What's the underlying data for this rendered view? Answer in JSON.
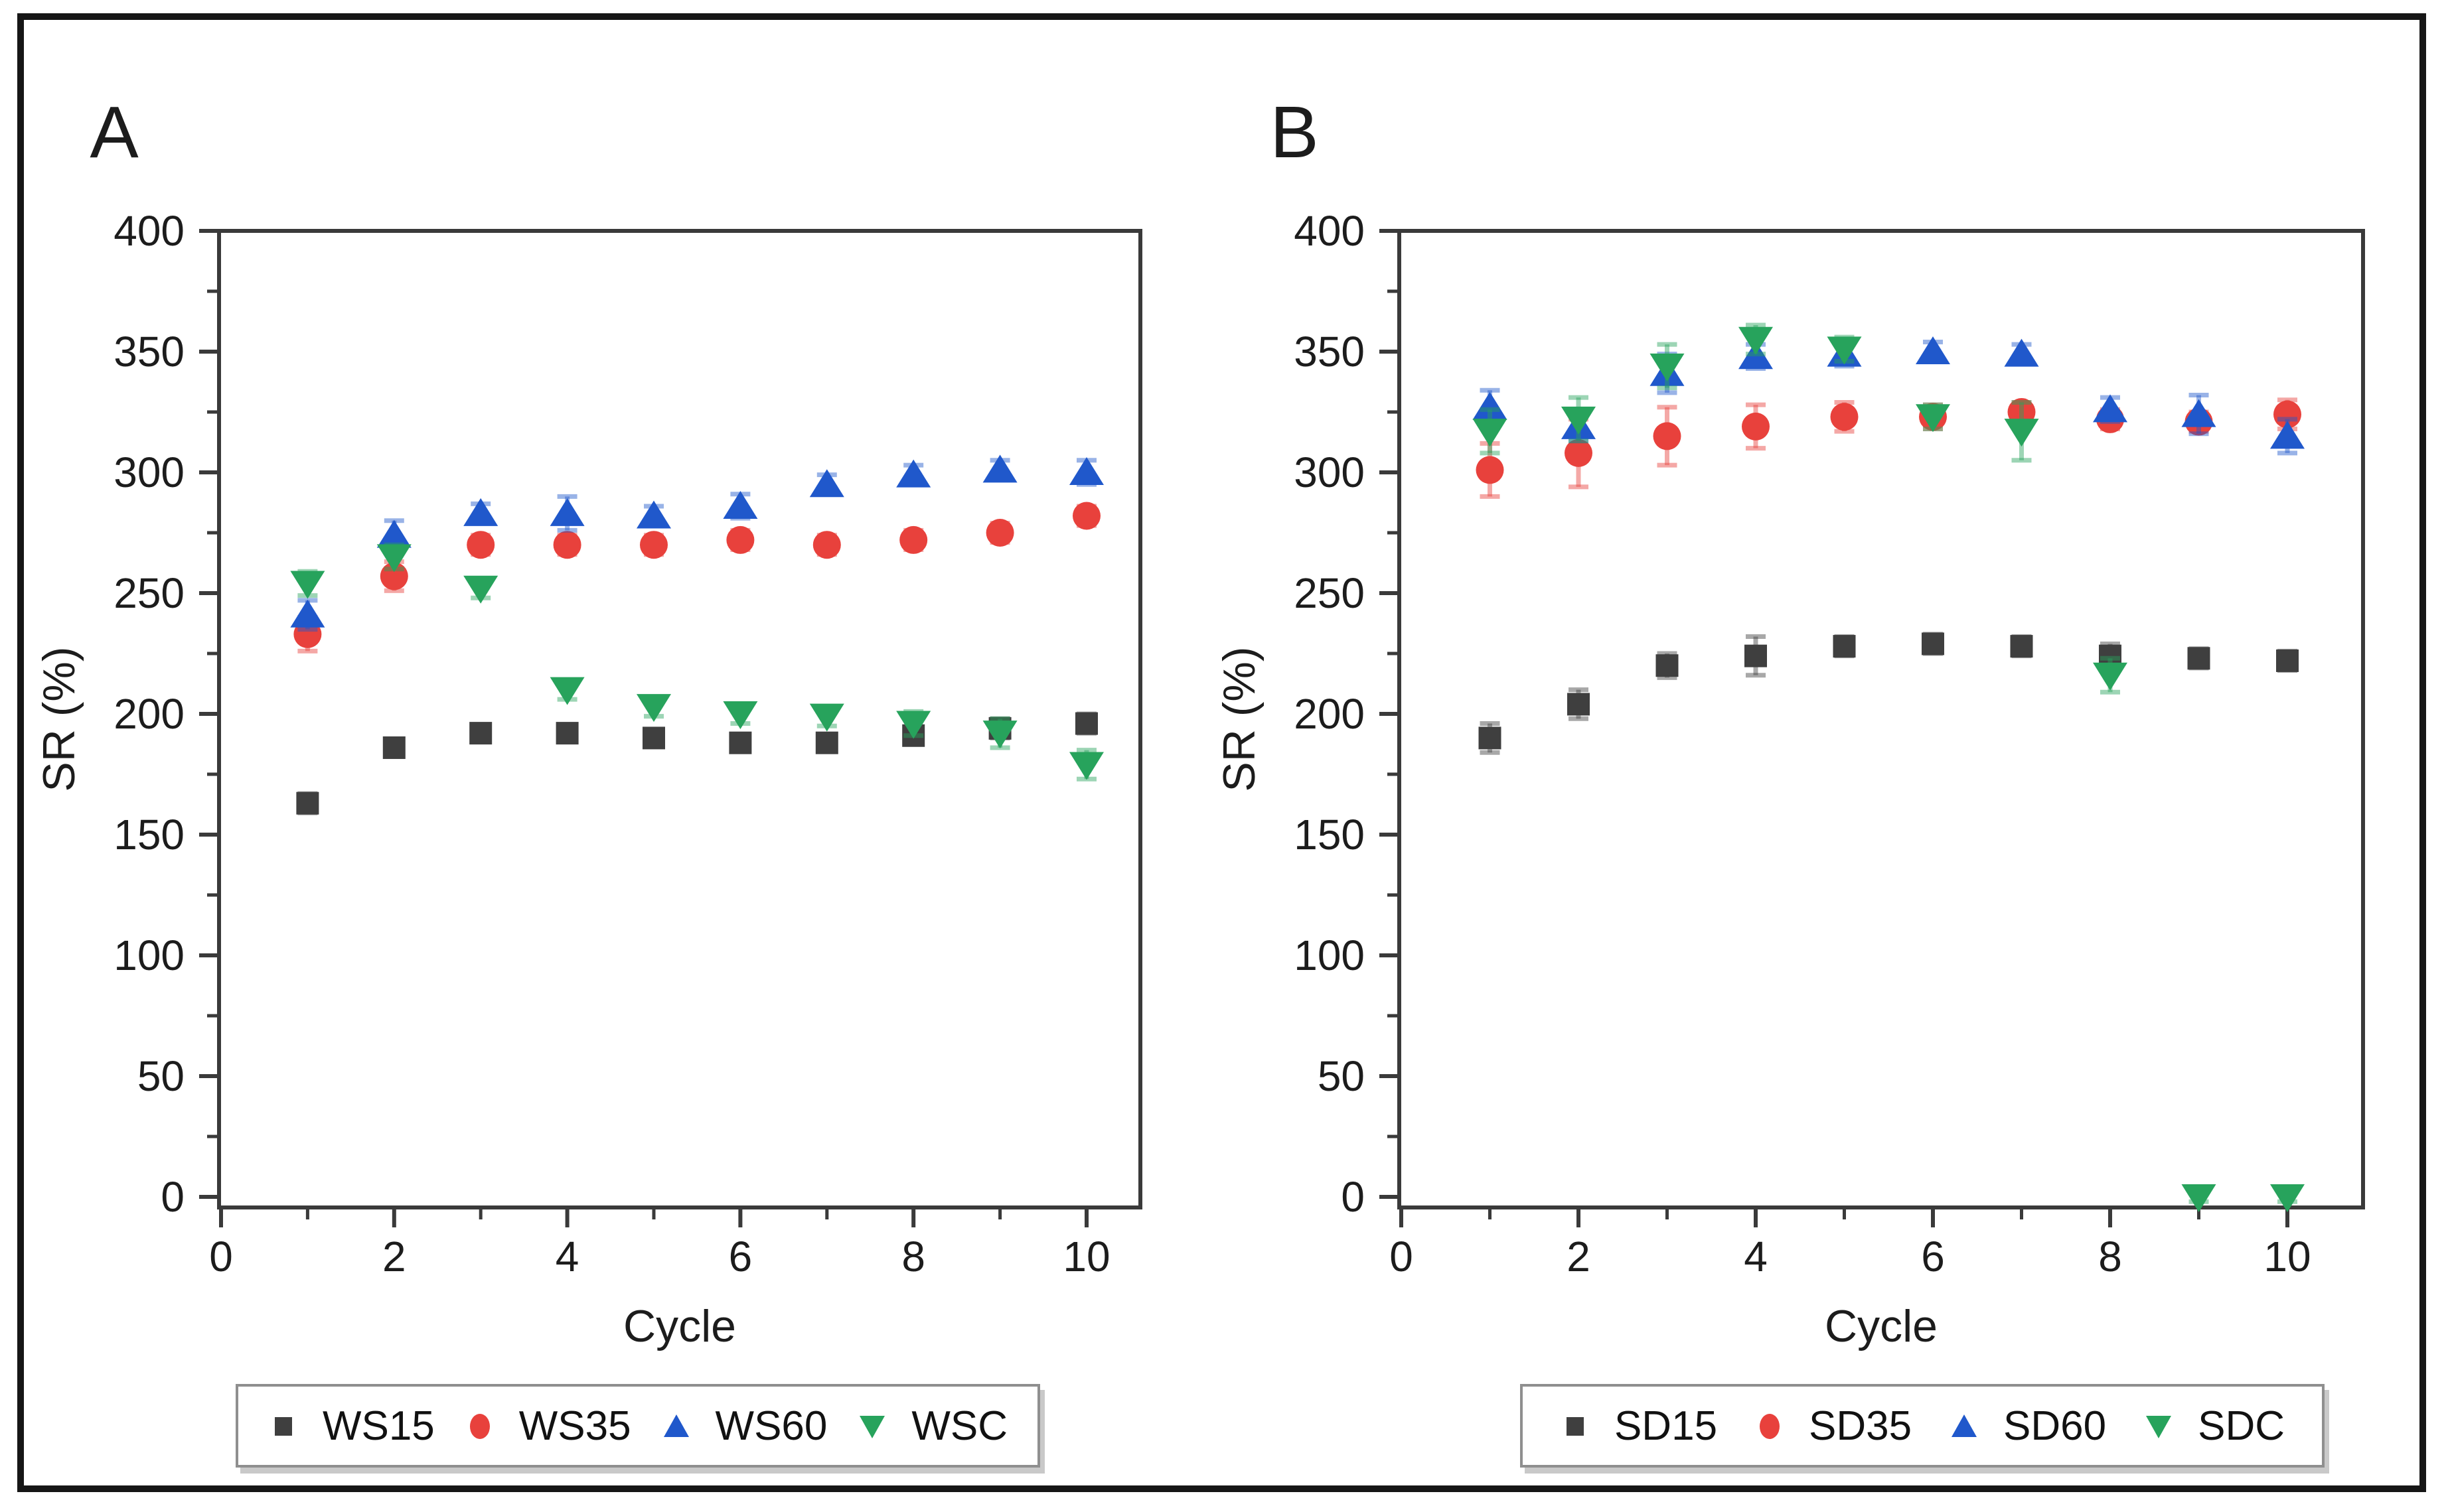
{
  "figure": {
    "background": "#ffffff",
    "border_color": "#161616",
    "axis_color": "#3a3a3a",
    "text_color": "#1c1c1c"
  },
  "chart_data": [
    {
      "panel_label": "A",
      "type": "scatter",
      "title": "",
      "xlabel": "Cycle",
      "ylabel": "SR (%)",
      "xlim": [
        0,
        10.6
      ],
      "ylim": [
        -4,
        400
      ],
      "grid": false,
      "legend_position": "bottom",
      "x_major_ticks": [
        0,
        2,
        4,
        6,
        8,
        10
      ],
      "x_minor_ticks": [
        1,
        3,
        5,
        7,
        9
      ],
      "y_major_ticks": [
        0,
        50,
        100,
        150,
        200,
        250,
        300,
        350,
        400
      ],
      "x": [
        1,
        2,
        3,
        4,
        5,
        6,
        7,
        8,
        9,
        10
      ],
      "series": [
        {
          "name": "WS15",
          "marker": "square",
          "color": "#3f3f3f",
          "values": [
            163,
            186,
            192,
            192,
            190,
            188,
            188,
            191,
            194,
            196
          ],
          "errors": [
            4,
            3,
            3,
            3,
            3,
            3,
            3,
            3,
            4,
            4
          ]
        },
        {
          "name": "WS35",
          "marker": "circle",
          "color": "#e8413c",
          "values": [
            233,
            257,
            270,
            270,
            270,
            272,
            270,
            272,
            275,
            282
          ],
          "errors": [
            7,
            6,
            4,
            4,
            4,
            4,
            4,
            4,
            4,
            4
          ]
        },
        {
          "name": "WS60",
          "marker": "triangle-up",
          "color": "#2058cb",
          "values": [
            241,
            274,
            283,
            283,
            282,
            286,
            295,
            299,
            301,
            300
          ],
          "errors": [
            6,
            6,
            4,
            7,
            4,
            5,
            4,
            4,
            4,
            5
          ]
        },
        {
          "name": "WSC",
          "marker": "triangle-down",
          "color": "#27a35c",
          "values": [
            254,
            265,
            252,
            210,
            203,
            200,
            199,
            196,
            192,
            179
          ],
          "errors": [
            5,
            5,
            4,
            4,
            4,
            4,
            4,
            5,
            6,
            6
          ]
        }
      ]
    },
    {
      "panel_label": "B",
      "type": "scatter",
      "title": "",
      "xlabel": "Cycle",
      "ylabel": "SR (%)",
      "xlim": [
        0,
        10.85
      ],
      "ylim": [
        -4,
        400
      ],
      "grid": false,
      "legend_position": "bottom",
      "x_major_ticks": [
        0,
        2,
        4,
        6,
        8,
        10
      ],
      "x_minor_ticks": [
        1,
        3,
        5,
        7,
        9
      ],
      "y_major_ticks": [
        0,
        50,
        100,
        150,
        200,
        250,
        300,
        350,
        400
      ],
      "x": [
        1,
        2,
        3,
        4,
        5,
        6,
        7,
        8,
        9,
        10
      ],
      "series": [
        {
          "name": "SD15",
          "marker": "square",
          "color": "#3f3f3f",
          "values": [
            190,
            204,
            220,
            224,
            228,
            229,
            228,
            224,
            223,
            222
          ],
          "errors": [
            6,
            6,
            5,
            8,
            4,
            4,
            4,
            5,
            4,
            4
          ]
        },
        {
          "name": "SD35",
          "marker": "circle",
          "color": "#e8413c",
          "values": [
            301,
            308,
            315,
            319,
            323,
            323,
            325,
            322,
            321,
            324
          ],
          "errors": [
            11,
            14,
            12,
            9,
            6,
            5,
            4,
            4,
            4,
            6
          ]
        },
        {
          "name": "SD60",
          "marker": "triangle-up",
          "color": "#2058cb",
          "values": [
            327,
            319,
            341,
            348,
            349,
            350,
            349,
            326,
            324,
            315
          ],
          "errors": [
            7,
            6,
            8,
            5,
            5,
            4,
            4,
            5,
            8,
            7
          ]
        },
        {
          "name": "SDC",
          "marker": "triangle-down",
          "color": "#27a35c",
          "values": [
            317,
            322,
            344,
            355,
            351,
            323,
            317,
            216,
            0,
            0
          ],
          "errors": [
            9,
            9,
            9,
            6,
            5,
            5,
            12,
            7,
            2,
            2
          ]
        }
      ]
    }
  ]
}
